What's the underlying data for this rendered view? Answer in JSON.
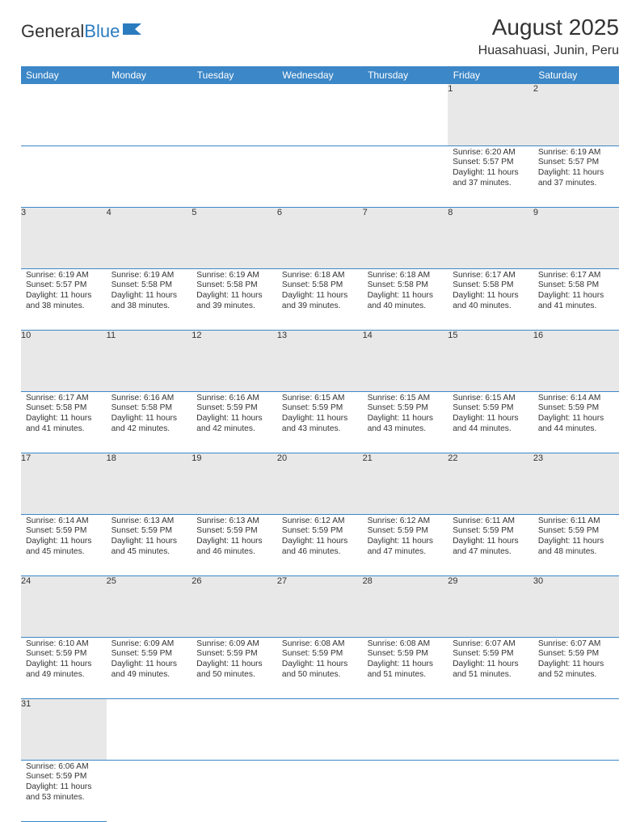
{
  "logo": {
    "text1": "General",
    "text2": "Blue"
  },
  "title": "August 2025",
  "location": "Huasahuasi, Junin, Peru",
  "colors": {
    "header_bg": "#3c87c7",
    "header_text": "#ffffff",
    "daynum_bg": "#e8e8e8",
    "border": "#3c87c7",
    "text": "#333333",
    "logo_accent": "#2b7bbf"
  },
  "weekdays": [
    "Sunday",
    "Monday",
    "Tuesday",
    "Wednesday",
    "Thursday",
    "Friday",
    "Saturday"
  ],
  "weeks": [
    [
      null,
      null,
      null,
      null,
      null,
      {
        "n": "1",
        "sr": "Sunrise: 6:20 AM",
        "ss": "Sunset: 5:57 PM",
        "dl": "Daylight: 11 hours and 37 minutes."
      },
      {
        "n": "2",
        "sr": "Sunrise: 6:19 AM",
        "ss": "Sunset: 5:57 PM",
        "dl": "Daylight: 11 hours and 37 minutes."
      }
    ],
    [
      {
        "n": "3",
        "sr": "Sunrise: 6:19 AM",
        "ss": "Sunset: 5:57 PM",
        "dl": "Daylight: 11 hours and 38 minutes."
      },
      {
        "n": "4",
        "sr": "Sunrise: 6:19 AM",
        "ss": "Sunset: 5:58 PM",
        "dl": "Daylight: 11 hours and 38 minutes."
      },
      {
        "n": "5",
        "sr": "Sunrise: 6:19 AM",
        "ss": "Sunset: 5:58 PM",
        "dl": "Daylight: 11 hours and 39 minutes."
      },
      {
        "n": "6",
        "sr": "Sunrise: 6:18 AM",
        "ss": "Sunset: 5:58 PM",
        "dl": "Daylight: 11 hours and 39 minutes."
      },
      {
        "n": "7",
        "sr": "Sunrise: 6:18 AM",
        "ss": "Sunset: 5:58 PM",
        "dl": "Daylight: 11 hours and 40 minutes."
      },
      {
        "n": "8",
        "sr": "Sunrise: 6:17 AM",
        "ss": "Sunset: 5:58 PM",
        "dl": "Daylight: 11 hours and 40 minutes."
      },
      {
        "n": "9",
        "sr": "Sunrise: 6:17 AM",
        "ss": "Sunset: 5:58 PM",
        "dl": "Daylight: 11 hours and 41 minutes."
      }
    ],
    [
      {
        "n": "10",
        "sr": "Sunrise: 6:17 AM",
        "ss": "Sunset: 5:58 PM",
        "dl": "Daylight: 11 hours and 41 minutes."
      },
      {
        "n": "11",
        "sr": "Sunrise: 6:16 AM",
        "ss": "Sunset: 5:58 PM",
        "dl": "Daylight: 11 hours and 42 minutes."
      },
      {
        "n": "12",
        "sr": "Sunrise: 6:16 AM",
        "ss": "Sunset: 5:59 PM",
        "dl": "Daylight: 11 hours and 42 minutes."
      },
      {
        "n": "13",
        "sr": "Sunrise: 6:15 AM",
        "ss": "Sunset: 5:59 PM",
        "dl": "Daylight: 11 hours and 43 minutes."
      },
      {
        "n": "14",
        "sr": "Sunrise: 6:15 AM",
        "ss": "Sunset: 5:59 PM",
        "dl": "Daylight: 11 hours and 43 minutes."
      },
      {
        "n": "15",
        "sr": "Sunrise: 6:15 AM",
        "ss": "Sunset: 5:59 PM",
        "dl": "Daylight: 11 hours and 44 minutes."
      },
      {
        "n": "16",
        "sr": "Sunrise: 6:14 AM",
        "ss": "Sunset: 5:59 PM",
        "dl": "Daylight: 11 hours and 44 minutes."
      }
    ],
    [
      {
        "n": "17",
        "sr": "Sunrise: 6:14 AM",
        "ss": "Sunset: 5:59 PM",
        "dl": "Daylight: 11 hours and 45 minutes."
      },
      {
        "n": "18",
        "sr": "Sunrise: 6:13 AM",
        "ss": "Sunset: 5:59 PM",
        "dl": "Daylight: 11 hours and 45 minutes."
      },
      {
        "n": "19",
        "sr": "Sunrise: 6:13 AM",
        "ss": "Sunset: 5:59 PM",
        "dl": "Daylight: 11 hours and 46 minutes."
      },
      {
        "n": "20",
        "sr": "Sunrise: 6:12 AM",
        "ss": "Sunset: 5:59 PM",
        "dl": "Daylight: 11 hours and 46 minutes."
      },
      {
        "n": "21",
        "sr": "Sunrise: 6:12 AM",
        "ss": "Sunset: 5:59 PM",
        "dl": "Daylight: 11 hours and 47 minutes."
      },
      {
        "n": "22",
        "sr": "Sunrise: 6:11 AM",
        "ss": "Sunset: 5:59 PM",
        "dl": "Daylight: 11 hours and 47 minutes."
      },
      {
        "n": "23",
        "sr": "Sunrise: 6:11 AM",
        "ss": "Sunset: 5:59 PM",
        "dl": "Daylight: 11 hours and 48 minutes."
      }
    ],
    [
      {
        "n": "24",
        "sr": "Sunrise: 6:10 AM",
        "ss": "Sunset: 5:59 PM",
        "dl": "Daylight: 11 hours and 49 minutes."
      },
      {
        "n": "25",
        "sr": "Sunrise: 6:09 AM",
        "ss": "Sunset: 5:59 PM",
        "dl": "Daylight: 11 hours and 49 minutes."
      },
      {
        "n": "26",
        "sr": "Sunrise: 6:09 AM",
        "ss": "Sunset: 5:59 PM",
        "dl": "Daylight: 11 hours and 50 minutes."
      },
      {
        "n": "27",
        "sr": "Sunrise: 6:08 AM",
        "ss": "Sunset: 5:59 PM",
        "dl": "Daylight: 11 hours and 50 minutes."
      },
      {
        "n": "28",
        "sr": "Sunrise: 6:08 AM",
        "ss": "Sunset: 5:59 PM",
        "dl": "Daylight: 11 hours and 51 minutes."
      },
      {
        "n": "29",
        "sr": "Sunrise: 6:07 AM",
        "ss": "Sunset: 5:59 PM",
        "dl": "Daylight: 11 hours and 51 minutes."
      },
      {
        "n": "30",
        "sr": "Sunrise: 6:07 AM",
        "ss": "Sunset: 5:59 PM",
        "dl": "Daylight: 11 hours and 52 minutes."
      }
    ],
    [
      {
        "n": "31",
        "sr": "Sunrise: 6:06 AM",
        "ss": "Sunset: 5:59 PM",
        "dl": "Daylight: 11 hours and 53 minutes."
      },
      null,
      null,
      null,
      null,
      null,
      null
    ]
  ]
}
